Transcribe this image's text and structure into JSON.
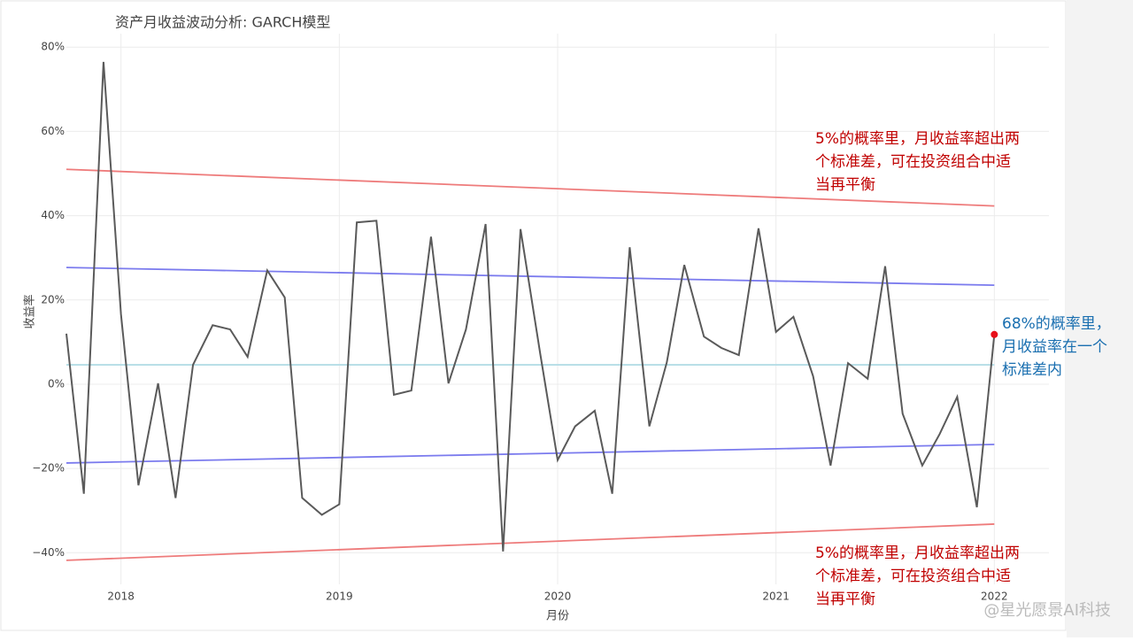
{
  "chart_data": {
    "type": "line",
    "title": "资产月收益波动分析: GARCH模型",
    "xlabel": "月份",
    "ylabel": "收益率",
    "xlim": [
      2017.75,
      2022.25
    ],
    "xticks": [
      2018,
      2019,
      2020,
      2021,
      2022
    ],
    "ylim": [
      -47.5,
      83.2
    ],
    "yticks": [
      {
        "value": -40,
        "label": "−40%"
      },
      {
        "value": -20,
        "label": "−20%"
      },
      {
        "value": 0,
        "label": "0%"
      },
      {
        "value": 20,
        "label": "20%"
      },
      {
        "value": 40,
        "label": "40%"
      },
      {
        "value": 60,
        "label": "60%"
      },
      {
        "value": 80,
        "label": "80%"
      }
    ],
    "grid": true,
    "series": [
      {
        "color": "#5a5a5a",
        "x": [
          2017.75,
          2017.83,
          2017.92,
          2018.0,
          2018.08,
          2018.17,
          2018.25,
          2018.33,
          2018.42,
          2018.5,
          2018.58,
          2018.67,
          2018.75,
          2018.83,
          2018.92,
          2019.0,
          2019.08,
          2019.17,
          2019.25,
          2019.33,
          2019.42,
          2019.5,
          2019.58,
          2019.67,
          2019.75,
          2019.83,
          2019.92,
          2020.0,
          2020.08,
          2020.17,
          2020.25,
          2020.33,
          2020.42,
          2020.5,
          2020.58,
          2020.67,
          2020.75,
          2020.83,
          2020.92,
          2021.0,
          2021.08,
          2021.17,
          2021.25,
          2021.33,
          2021.42,
          2021.5,
          2021.58,
          2021.67,
          2021.75,
          2021.83,
          2021.92,
          2022.0
        ],
        "values": [
          12,
          -26,
          76.5,
          16.6,
          -24,
          0.2,
          -27,
          4.6,
          14,
          13,
          6.5,
          27,
          20.6,
          -27,
          -31,
          -28.5,
          38.4,
          38.8,
          -2.5,
          -1.5,
          35,
          0.2,
          13,
          38,
          -39.7,
          36.8,
          7.3,
          -18,
          -10,
          -6.3,
          -26,
          32.5,
          -10,
          5.2,
          28.3,
          11.3,
          8.6,
          6.9,
          37,
          12.4,
          16,
          1.9,
          -19.3,
          5,
          1.3,
          28,
          -7,
          -19.3,
          -11.8,
          -3,
          -29.2,
          11.8
        ],
        "end_marker_color": "#e8101a"
      },
      {
        "color": "#ee7b7b",
        "x": [
          2017.75,
          2022.0
        ],
        "values": [
          51,
          42.3
        ]
      },
      {
        "color": "#7b7bee",
        "x": [
          2017.75,
          2022.0
        ],
        "values": [
          27.7,
          23.5
        ]
      },
      {
        "color": "#b4dde6",
        "x": [
          2017.75,
          2022.0
        ],
        "values": [
          4.6,
          4.6
        ]
      },
      {
        "color": "#7b7bee",
        "x": [
          2017.75,
          2022.0
        ],
        "values": [
          -18.7,
          -14.3
        ]
      },
      {
        "color": "#ee7b7b",
        "x": [
          2017.75,
          2022.0
        ],
        "values": [
          -41.8,
          -33.2
        ]
      }
    ],
    "annotations": [
      {
        "lines": [
          "5%的概率里，月收益率超出两",
          "个标准差，可在投资组合中适",
          "当再平衡"
        ],
        "color": "#c00000"
      },
      {
        "lines": [
          "68%的概率里，",
          "月收益率在一个",
          "标准差内"
        ],
        "color": "#1a6fb0"
      },
      {
        "lines": [
          "5%的概率里，月收益率超出两",
          "个标准差，可在投资组合中适",
          "当再平衡"
        ],
        "color": "#c00000"
      }
    ],
    "watermark": "@星光愿景AI科技"
  }
}
